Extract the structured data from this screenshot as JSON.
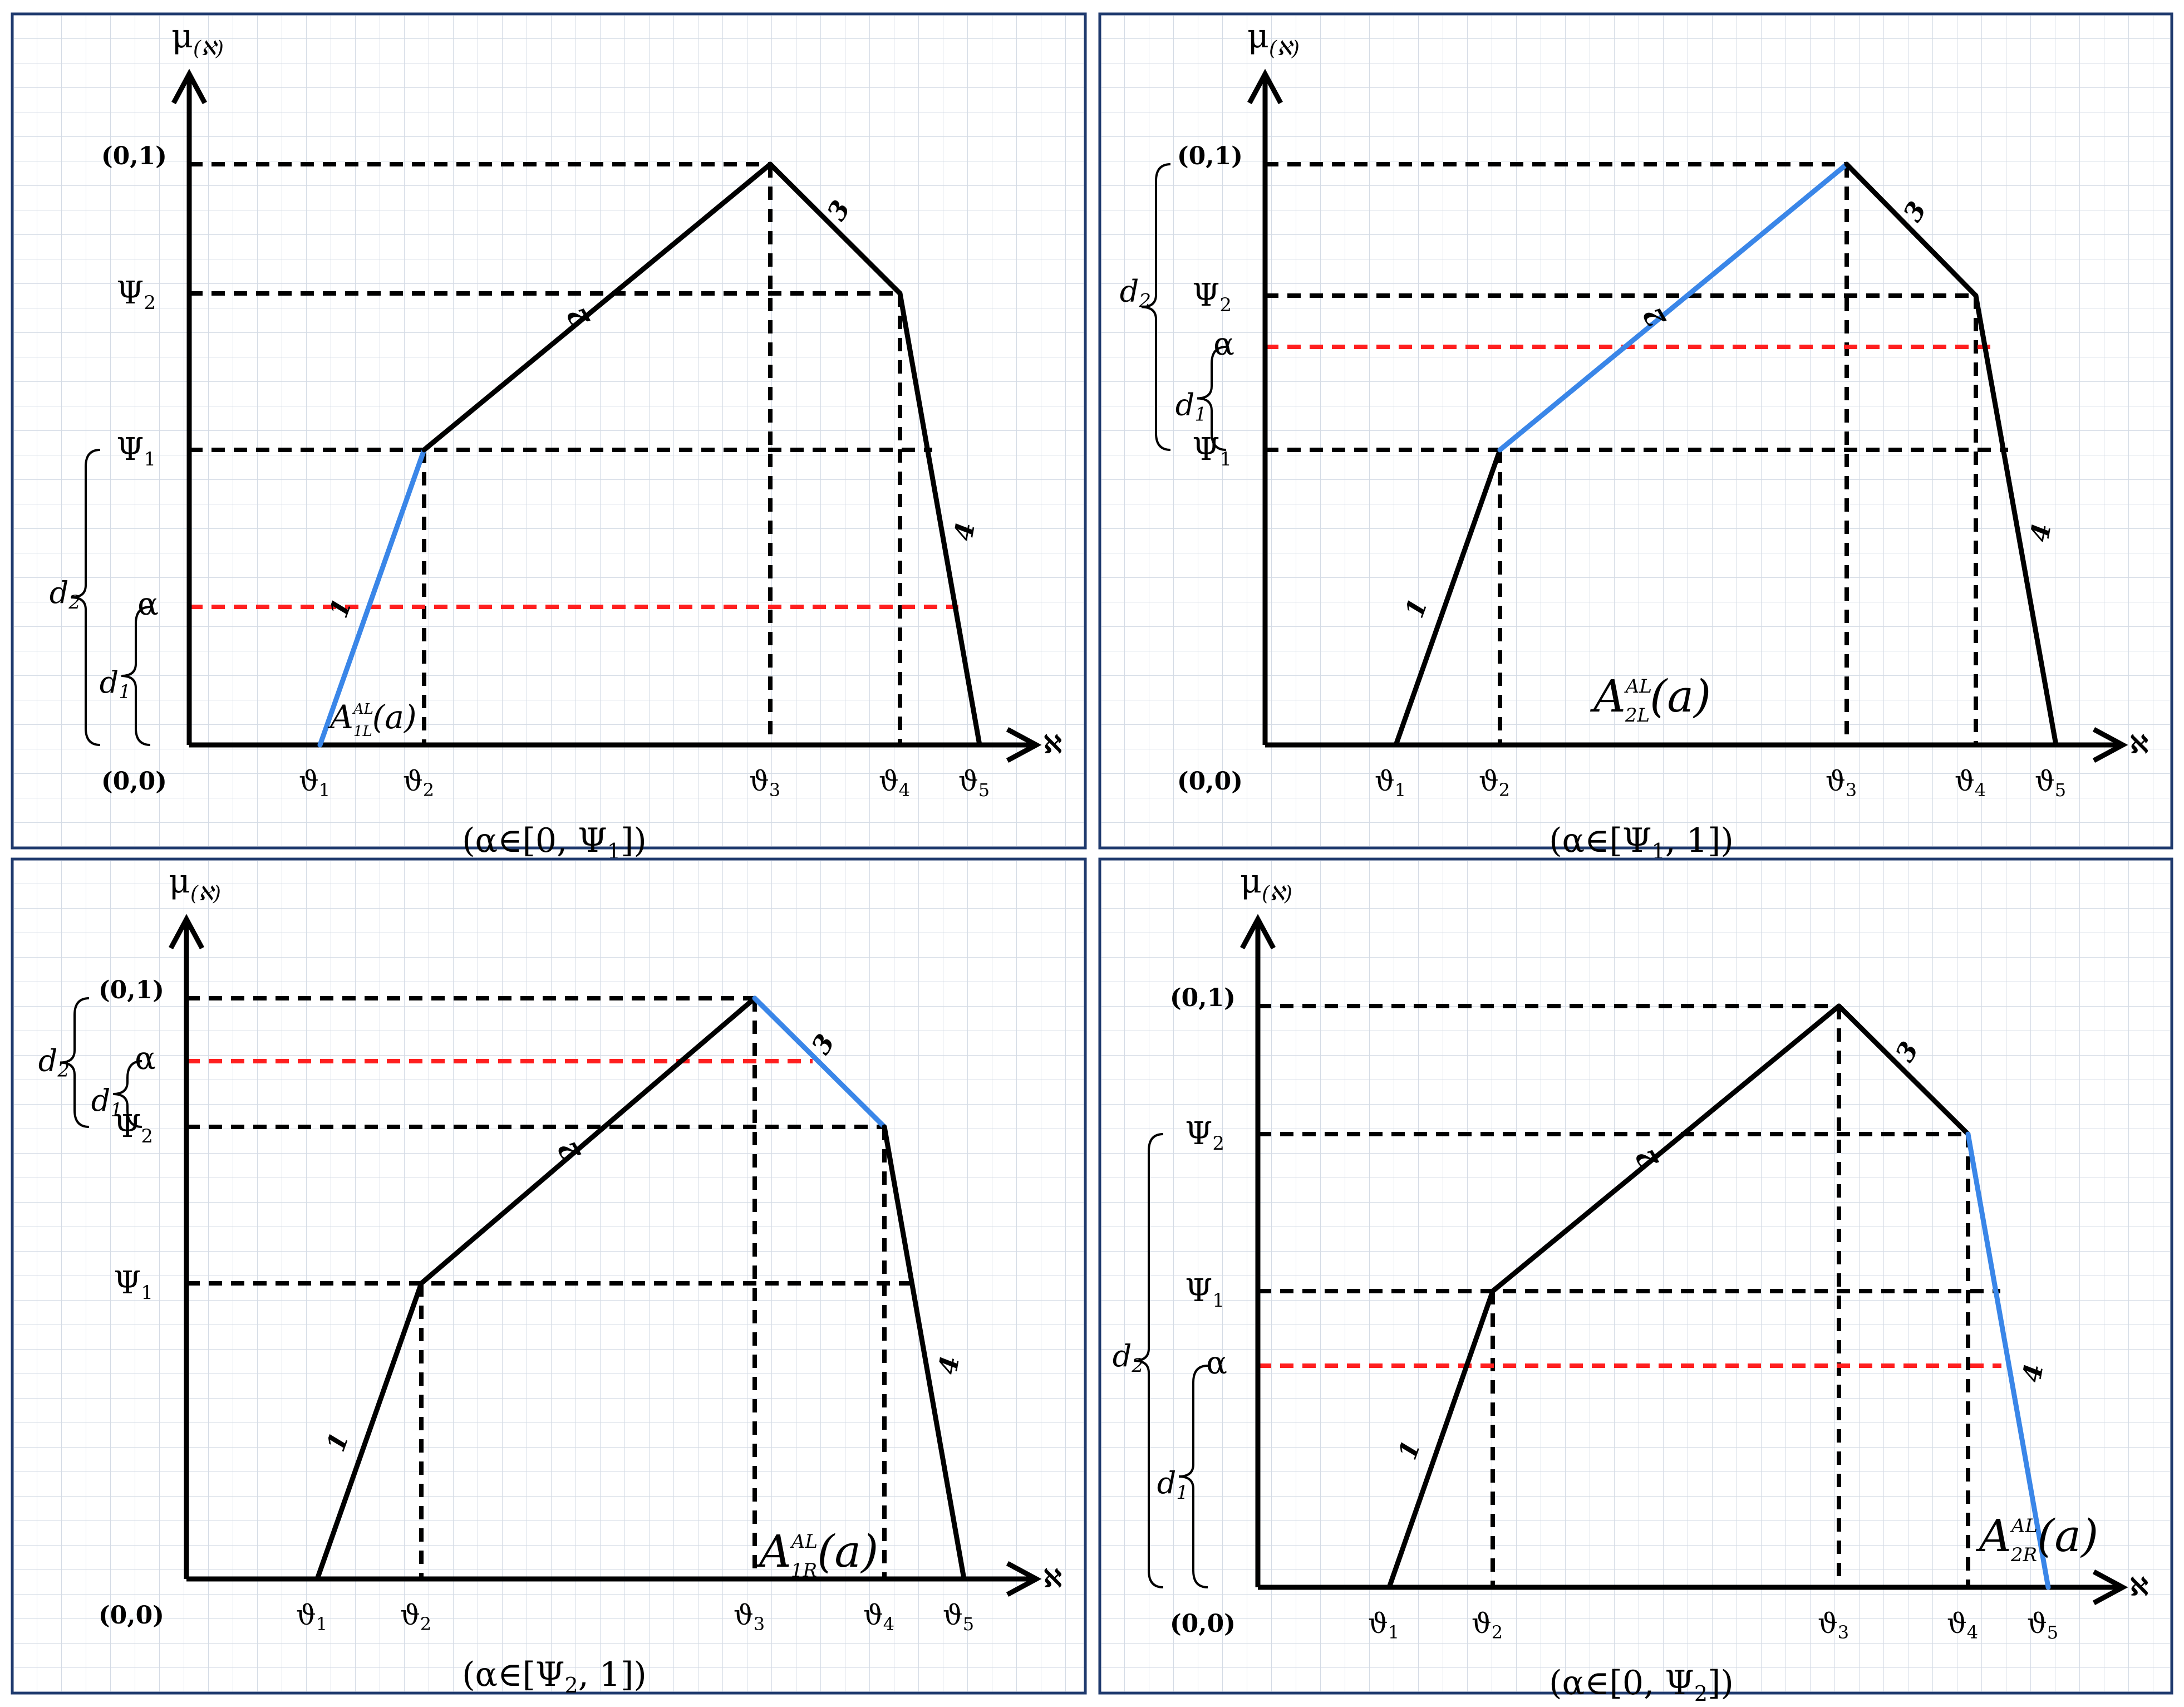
{
  "points": {
    "origin": "(0,0)",
    "top": "(0,1)"
  },
  "axes": {
    "y_symbol": "μ",
    "y_sub": "(ℵ)",
    "x_symbol": "ℵ"
  },
  "levels": {
    "psi1": "Ψ",
    "psi1_sub": "1",
    "psi2": "Ψ",
    "psi2_sub": "2",
    "alpha": "α"
  },
  "ticks": [
    {
      "sym": "ϑ",
      "sub": "1"
    },
    {
      "sym": "ϑ",
      "sub": "2"
    },
    {
      "sym": "ϑ",
      "sub": "3"
    },
    {
      "sym": "ϑ",
      "sub": "4"
    },
    {
      "sym": "ϑ",
      "sub": "5"
    }
  ],
  "segment_labels": [
    "1",
    "2",
    "3",
    "4"
  ],
  "braces": {
    "d1": "d",
    "d1_sub": "1",
    "d2": "d",
    "d2_sub": "2"
  },
  "panels": [
    {
      "id": "panel-1",
      "highlight_segment": "1",
      "alpha_level": "between 0 and Ψ1",
      "function": {
        "base": "A",
        "sup": "AL",
        "sub": "1L",
        "arg": "(a)"
      },
      "caption": {
        "prefix": "(α∈[0, Ψ",
        "sub": "1",
        "suffix": "])"
      }
    },
    {
      "id": "panel-2",
      "highlight_segment": "2",
      "alpha_level": "between Ψ1 and Ψ2",
      "function": {
        "base": "A",
        "sup": "AL",
        "sub": "2L",
        "arg": "(a)"
      },
      "caption": {
        "prefix": "(α∈[Ψ",
        "sub": "1",
        "suffix": ", 1])"
      }
    },
    {
      "id": "panel-3",
      "highlight_segment": "3",
      "alpha_level": "between Ψ2 and 1",
      "function": {
        "base": "A",
        "sup": "AL",
        "sub": "1R",
        "arg": "(a)"
      },
      "caption": {
        "prefix": "(α∈[Ψ",
        "sub": "2",
        "suffix": ", 1])"
      }
    },
    {
      "id": "panel-4",
      "highlight_segment": "4",
      "alpha_level": "between 0 and Ψ1",
      "function": {
        "base": "A",
        "sup": "AL",
        "sub": "2R",
        "arg": "(a)"
      },
      "caption": {
        "prefix": "(α∈[0, Ψ",
        "sub": "2",
        "suffix": "])"
      }
    }
  ],
  "colors": {
    "highlight": "#3a86e8",
    "alpha_line": "#ff1f1f",
    "frame": "#1f3a6e",
    "grid": "#d4dbe5"
  }
}
